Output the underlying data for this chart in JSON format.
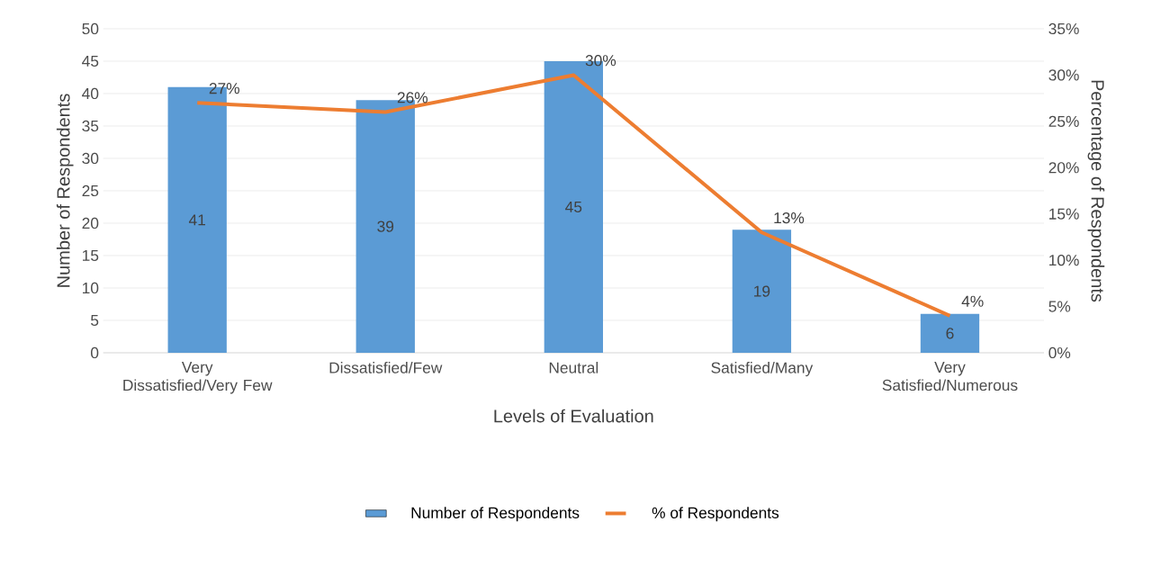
{
  "chart_data": {
    "type": "bar",
    "categories": [
      "Very Dissatisfied/Very Few",
      "Dissatisfied/Few",
      "Neutral",
      "Satisfied/Many",
      "Very Satisfied/Numerous"
    ],
    "series": [
      {
        "name": "Number of Respondents",
        "color": "#5b9bd5",
        "values": [
          41,
          39,
          45,
          19,
          6
        ],
        "value_labels": [
          "41",
          "39",
          "45",
          "19",
          "6"
        ]
      },
      {
        "name": "% of Respondents",
        "type": "line",
        "axis": "y2",
        "color": "#ed7d31",
        "values": [
          27,
          26,
          30,
          13,
          4
        ],
        "value_labels": [
          "27%",
          "26%",
          "30%",
          "13%",
          "4%"
        ]
      }
    ],
    "xlabel": "Levels of Evaluation",
    "ylabel": "Number of Respondents",
    "y2label": "Percentage of Respondents",
    "ylim": [
      0,
      50
    ],
    "yticks": [
      0,
      5,
      10,
      15,
      20,
      25,
      30,
      35,
      40,
      45,
      50
    ],
    "y2lim": [
      0,
      35
    ],
    "y2ticks": [
      {
        "value": 0,
        "label": "0%"
      },
      {
        "value": 5,
        "label": "5%"
      },
      {
        "value": 10,
        "label": "10%"
      },
      {
        "value": 15,
        "label": "15%"
      },
      {
        "value": 20,
        "label": "20%"
      },
      {
        "value": 25,
        "label": "25%"
      },
      {
        "value": 30,
        "label": "30%"
      },
      {
        "value": 35,
        "label": "35%"
      }
    ],
    "grid": "y",
    "legend": "bottom"
  }
}
